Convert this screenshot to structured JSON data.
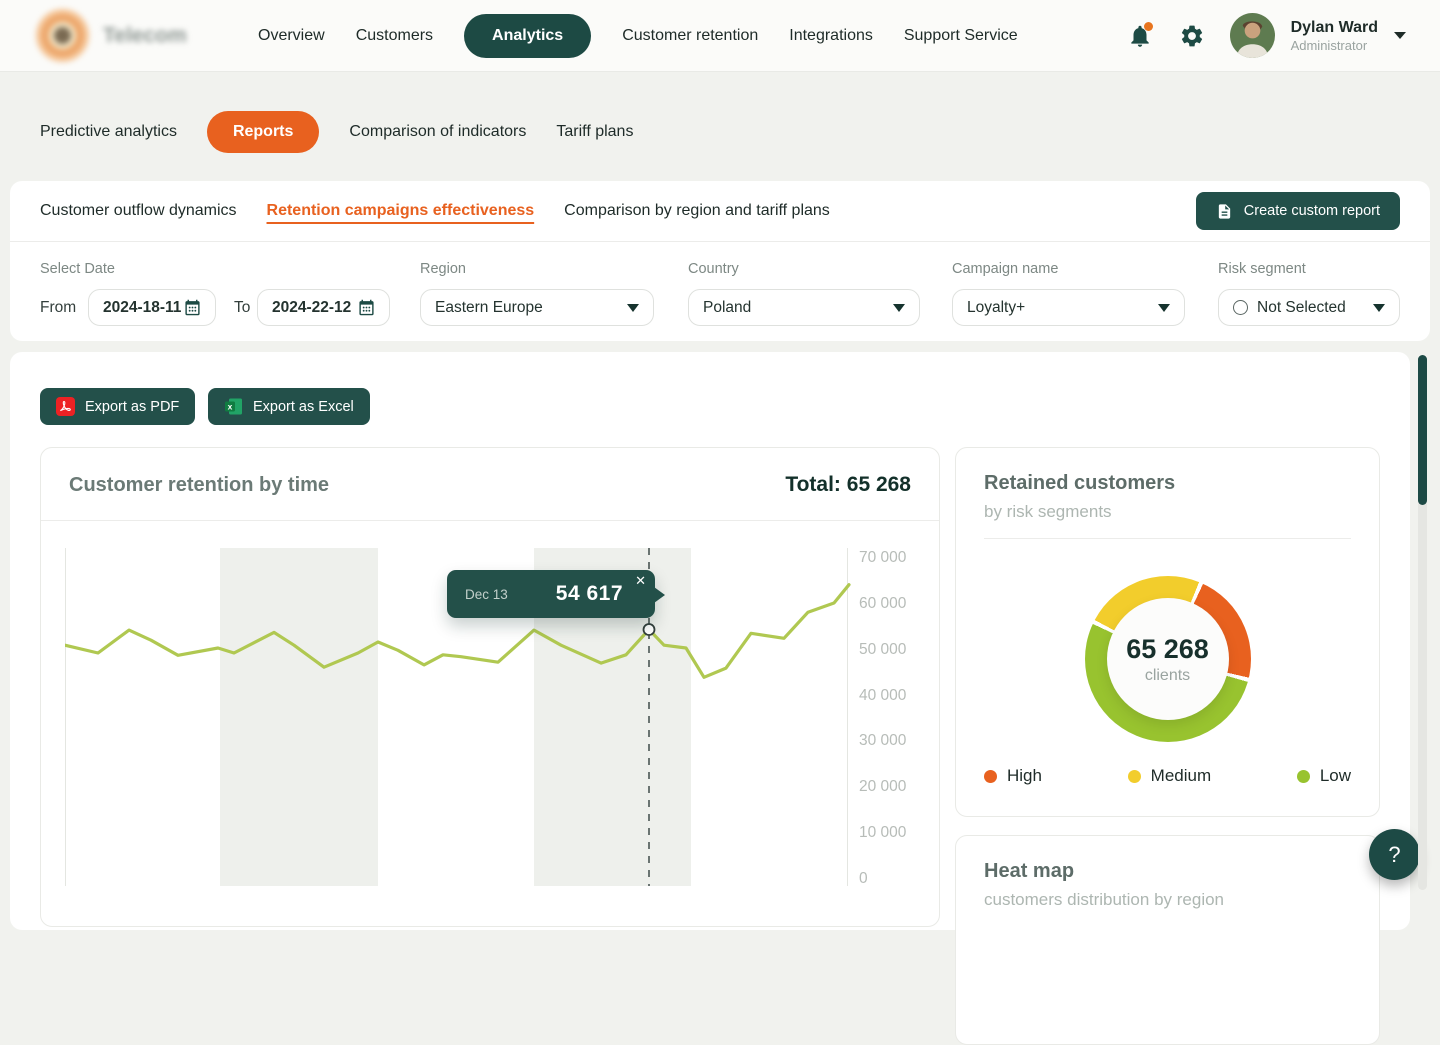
{
  "icons": {
    "close": "✕",
    "help": "?"
  },
  "header": {
    "logo_text": "Telecom",
    "nav": [
      {
        "label": "Overview",
        "active": false
      },
      {
        "label": "Customers",
        "active": false
      },
      {
        "label": "Analytics",
        "active": true
      },
      {
        "label": "Customer retention",
        "active": false
      },
      {
        "label": "Integrations",
        "active": false
      },
      {
        "label": "Support Service",
        "active": false
      }
    ],
    "user": {
      "name": "Dylan Ward",
      "role": "Administrator"
    }
  },
  "section_tabs": [
    {
      "label": "Predictive analytics",
      "active": false
    },
    {
      "label": "Reports",
      "active": true
    },
    {
      "label": "Comparison of indicators",
      "active": false
    },
    {
      "label": "Tariff plans",
      "active": false
    }
  ],
  "report_bar": {
    "tabs": [
      {
        "label": "Customer outflow dynamics",
        "active": false
      },
      {
        "label": "Retention campaigns effectiveness",
        "active": true
      },
      {
        "label": "Comparison by region and tariff plans",
        "active": false
      }
    ],
    "create_button_label": "Create custom report"
  },
  "filters": {
    "date_label": "Select Date",
    "from_word": "From",
    "from_value": "2024-18-11",
    "to_word": "To",
    "to_value": "2024-22-12",
    "region_label": "Region",
    "region_value": "Eastern Europe",
    "country_label": "Country",
    "country_value": "Poland",
    "campaign_label": "Campaign name",
    "campaign_value": "Loyalty+",
    "risk_label": "Risk segment",
    "risk_value": "Not Selected"
  },
  "toolbar": {
    "export_pdf_label": "Export as PDF",
    "export_excel_label": "Export as Excel"
  },
  "chart_data": [
    {
      "type": "line",
      "title": "Customer retention by time",
      "total_label": "Total: 65 268",
      "x_range_from": "2024-18-11",
      "x_range_to": "2024-22-12",
      "y_axis": {
        "min": 0,
        "max": 73000,
        "ticks": [
          {
            "label": "70 000",
            "value": 70000
          },
          {
            "label": "60 000",
            "value": 60000
          },
          {
            "label": "50 000",
            "value": 50000
          },
          {
            "label": "40 000",
            "value": 40000
          },
          {
            "label": "30 000",
            "value": 30000
          },
          {
            "label": "20 000",
            "value": 20000
          },
          {
            "label": "10 000",
            "value": 10000
          },
          {
            "label": "0",
            "value": 0
          }
        ]
      },
      "grid": "vertical-bands",
      "series": [
        {
          "name": "Customer retention",
          "color": "#b0c851",
          "points": [
            [
              0,
              51200
            ],
            [
              33,
              49500
            ],
            [
              64,
              54500
            ],
            [
              86,
              52300
            ],
            [
              113,
              49000
            ],
            [
              153,
              50600
            ],
            [
              169,
              49500
            ],
            [
              209,
              54000
            ],
            [
              229,
              51200
            ],
            [
              259,
              46400
            ],
            [
              293,
              49500
            ],
            [
              313,
              51900
            ],
            [
              333,
              50100
            ],
            [
              359,
              46900
            ],
            [
              378,
              49100
            ],
            [
              396,
              48700
            ],
            [
              433,
              47500
            ],
            [
              469,
              54500
            ],
            [
              496,
              51200
            ],
            [
              536,
              47300
            ],
            [
              561,
              49100
            ],
            [
              584,
              54617
            ],
            [
              599,
              51200
            ],
            [
              621,
              50600
            ],
            [
              639,
              44200
            ],
            [
              661,
              46200
            ],
            [
              686,
              53800
            ],
            [
              719,
              52700
            ],
            [
              743,
              58400
            ],
            [
              769,
              60400
            ],
            [
              784,
              64400
            ]
          ]
        }
      ],
      "highlight": {
        "x": 584,
        "value": 54617,
        "date_label": "Dec 13",
        "value_label": "54 617"
      }
    },
    {
      "type": "donut",
      "title": "Retained customers",
      "subtitle": "by risk segments",
      "center_value": "65 268",
      "center_label": "clients",
      "segments": [
        {
          "label": "High",
          "color": "#e8611f",
          "percent": 22,
          "arc_from": 25,
          "arc_to": 103
        },
        {
          "label": "Medium",
          "color": "#f2cd2c",
          "percent": 23,
          "arc_from": 298,
          "arc_to": 382
        },
        {
          "label": "Low",
          "color": "#98c32f",
          "percent": 55,
          "arc_from": 106,
          "arc_to": 295
        }
      ]
    }
  ],
  "heatmap": {
    "title": "Heat map",
    "subtitle": "customers distribution by region"
  }
}
